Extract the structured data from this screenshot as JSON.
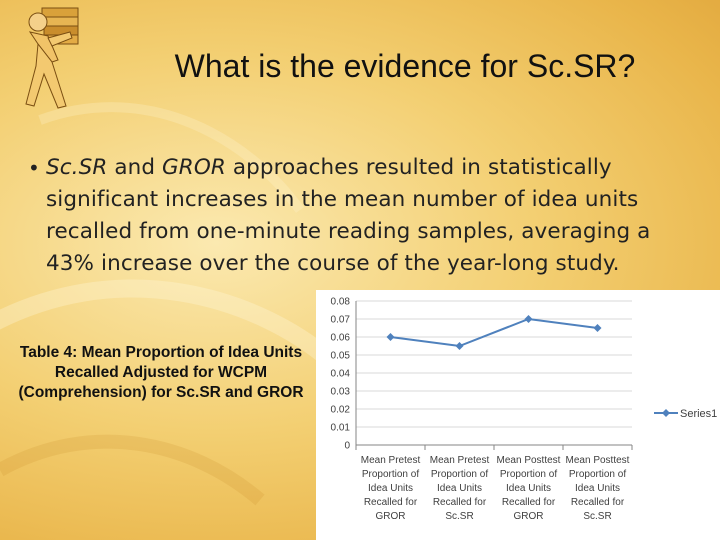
{
  "slide": {
    "title": "What is the evidence for Sc.SR?",
    "bullet": {
      "em1": "Sc.SR",
      "t1": " and ",
      "em2": "GROR",
      "t2": " approaches resulted in statistically significant increases in the mean number of idea units recalled from one-minute reading samples, averaging a 43% increase over the course of the year-long study."
    },
    "caption": "Table 4: Mean Proportion of Idea Units Recalled Adjusted for WCPM (Comprehension) for Sc.SR and GROR"
  },
  "colors": {
    "series": "#4F81BD",
    "gridline": "#d9d9d9",
    "axis": "#868686"
  },
  "chart_data": {
    "type": "line",
    "title": "",
    "xlabel": "",
    "ylabel": "",
    "ylim": [
      0,
      0.08
    ],
    "yticks": [
      "0",
      "0.01",
      "0.02",
      "0.03",
      "0.04",
      "0.05",
      "0.06",
      "0.07",
      "0.08"
    ],
    "categories": [
      [
        "Mean Pretest",
        "Proportion of",
        "Idea Units",
        "Recalled for",
        "GROR"
      ],
      [
        "Mean Pretest",
        "Proportion of",
        "Idea Units",
        "Recalled for",
        "Sc.SR"
      ],
      [
        "Mean Posttest",
        "Proportion of",
        "Idea Units",
        "Recalled for",
        "GROR"
      ],
      [
        "Mean Posttest",
        "Proportion of",
        "Idea Units",
        "Recalled for",
        "Sc.SR"
      ]
    ],
    "series": [
      {
        "name": "Series1",
        "values": [
          0.06,
          0.055,
          0.07,
          0.065
        ]
      }
    ],
    "grid": true,
    "legend": "right"
  }
}
